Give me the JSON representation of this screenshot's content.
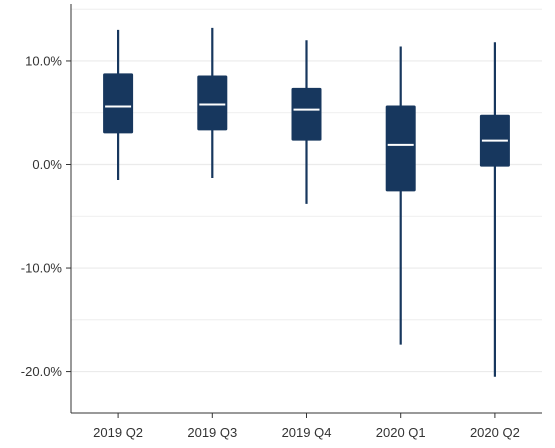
{
  "chart_data": {
    "type": "boxplot",
    "title": "",
    "xlabel": "",
    "ylabel": "",
    "categories": [
      "2019 Q2",
      "2019 Q3",
      "2019 Q4",
      "2020 Q1",
      "2020 Q2"
    ],
    "boxes": [
      {
        "category": "2019 Q2",
        "whisker_low": -1.5,
        "q1": 3.0,
        "median": 5.6,
        "q3": 8.8,
        "whisker_high": 13.0
      },
      {
        "category": "2019 Q3",
        "whisker_low": -1.3,
        "q1": 3.3,
        "median": 5.8,
        "q3": 8.6,
        "whisker_high": 13.2
      },
      {
        "category": "2019 Q4",
        "whisker_low": -3.8,
        "q1": 2.3,
        "median": 5.3,
        "q3": 7.4,
        "whisker_high": 12.0
      },
      {
        "category": "2020 Q1",
        "whisker_low": -17.4,
        "q1": -2.6,
        "median": 1.9,
        "q3": 5.7,
        "whisker_high": 11.4
      },
      {
        "category": "2020 Q2",
        "whisker_low": -20.5,
        "q1": -0.2,
        "median": 2.3,
        "q3": 4.8,
        "whisker_high": 11.8
      }
    ],
    "y_ticks": [
      10,
      0,
      -10,
      -20
    ],
    "y_tick_labels": [
      "10.0%",
      "0.0%",
      "-10.0%",
      "-20.0%"
    ],
    "ylim": [
      -24,
      15.5
    ],
    "grid": true,
    "colors": {
      "box": "#17375e",
      "median": "#ffffff",
      "grid": "#ebebeb",
      "axis": "#333333"
    }
  }
}
